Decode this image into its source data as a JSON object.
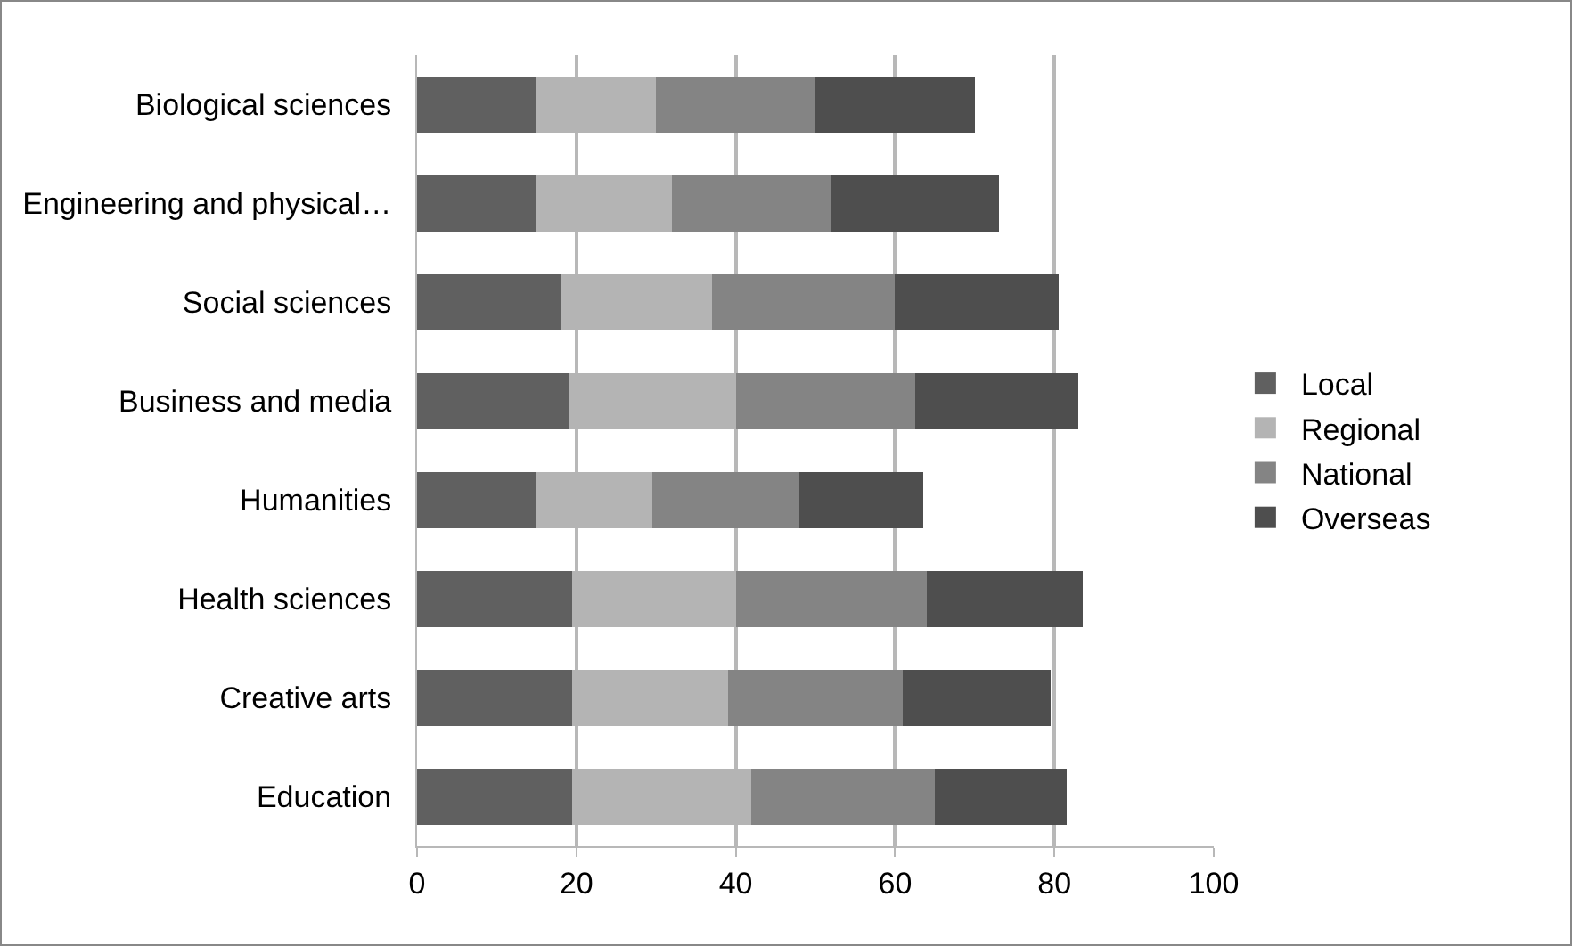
{
  "chart_data": {
    "type": "bar",
    "orientation": "horizontal",
    "stacked": true,
    "categories": [
      "Biological sciences",
      "Engineering and physical…",
      "Social sciences",
      "Business and media",
      "Humanities",
      "Health sciences",
      "Creative arts",
      "Education"
    ],
    "series": [
      {
        "name": "Local",
        "color": "#606060",
        "values": [
          15,
          15,
          18,
          19,
          15,
          19.5,
          19.5,
          19.5
        ]
      },
      {
        "name": "Regional",
        "color": "#b4b4b4",
        "values": [
          15,
          17,
          19,
          21,
          14.5,
          20.5,
          19.5,
          22.5
        ]
      },
      {
        "name": "National",
        "color": "#848484",
        "values": [
          20,
          20,
          23,
          22.5,
          18.5,
          24,
          22,
          23
        ]
      },
      {
        "name": "Overseas",
        "color": "#4e4e4e",
        "values": [
          20,
          21,
          20.5,
          20.5,
          15.5,
          19.5,
          18.5,
          16.5
        ]
      }
    ],
    "xlim": [
      0,
      100
    ],
    "xticks": [
      0,
      20,
      40,
      60,
      80,
      100
    ],
    "grid": "x",
    "legend": "right"
  }
}
